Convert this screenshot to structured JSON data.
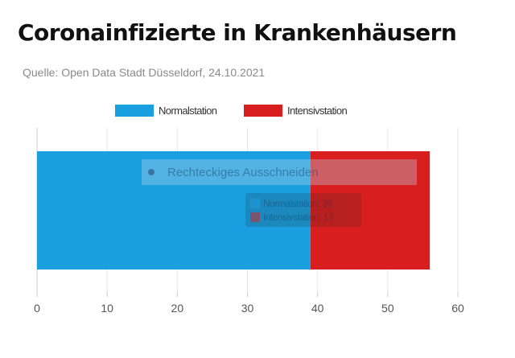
{
  "title": "Coronainfizierte in Krankenhäusern",
  "source": "Quelle: Open Data Stadt Düsseldorf, 24.10.2021",
  "overlay": {
    "icon": "scissors-icon",
    "label": "Rechteckiges Ausschneiden"
  },
  "colors": {
    "normalstation": "#1a9fe0",
    "intensivstation": "#d81e1e"
  },
  "chart_data": {
    "type": "bar",
    "orientation": "horizontal",
    "stacked": true,
    "categories": [
      ""
    ],
    "series": [
      {
        "name": "Normalstation",
        "values": [
          39
        ],
        "color": "#1a9fe0"
      },
      {
        "name": "Intensivstation",
        "values": [
          17
        ],
        "color": "#d81e1e"
      }
    ],
    "xlim": [
      0,
      60
    ],
    "xticks": [
      0,
      10,
      20,
      30,
      40,
      50,
      60
    ],
    "grid": true,
    "legend": "top-center",
    "tooltip": [
      {
        "label": "Normalstation: 39",
        "series": "Normalstation"
      },
      {
        "label": "Intensivstation: 17",
        "series": "Intensivstation"
      }
    ]
  }
}
